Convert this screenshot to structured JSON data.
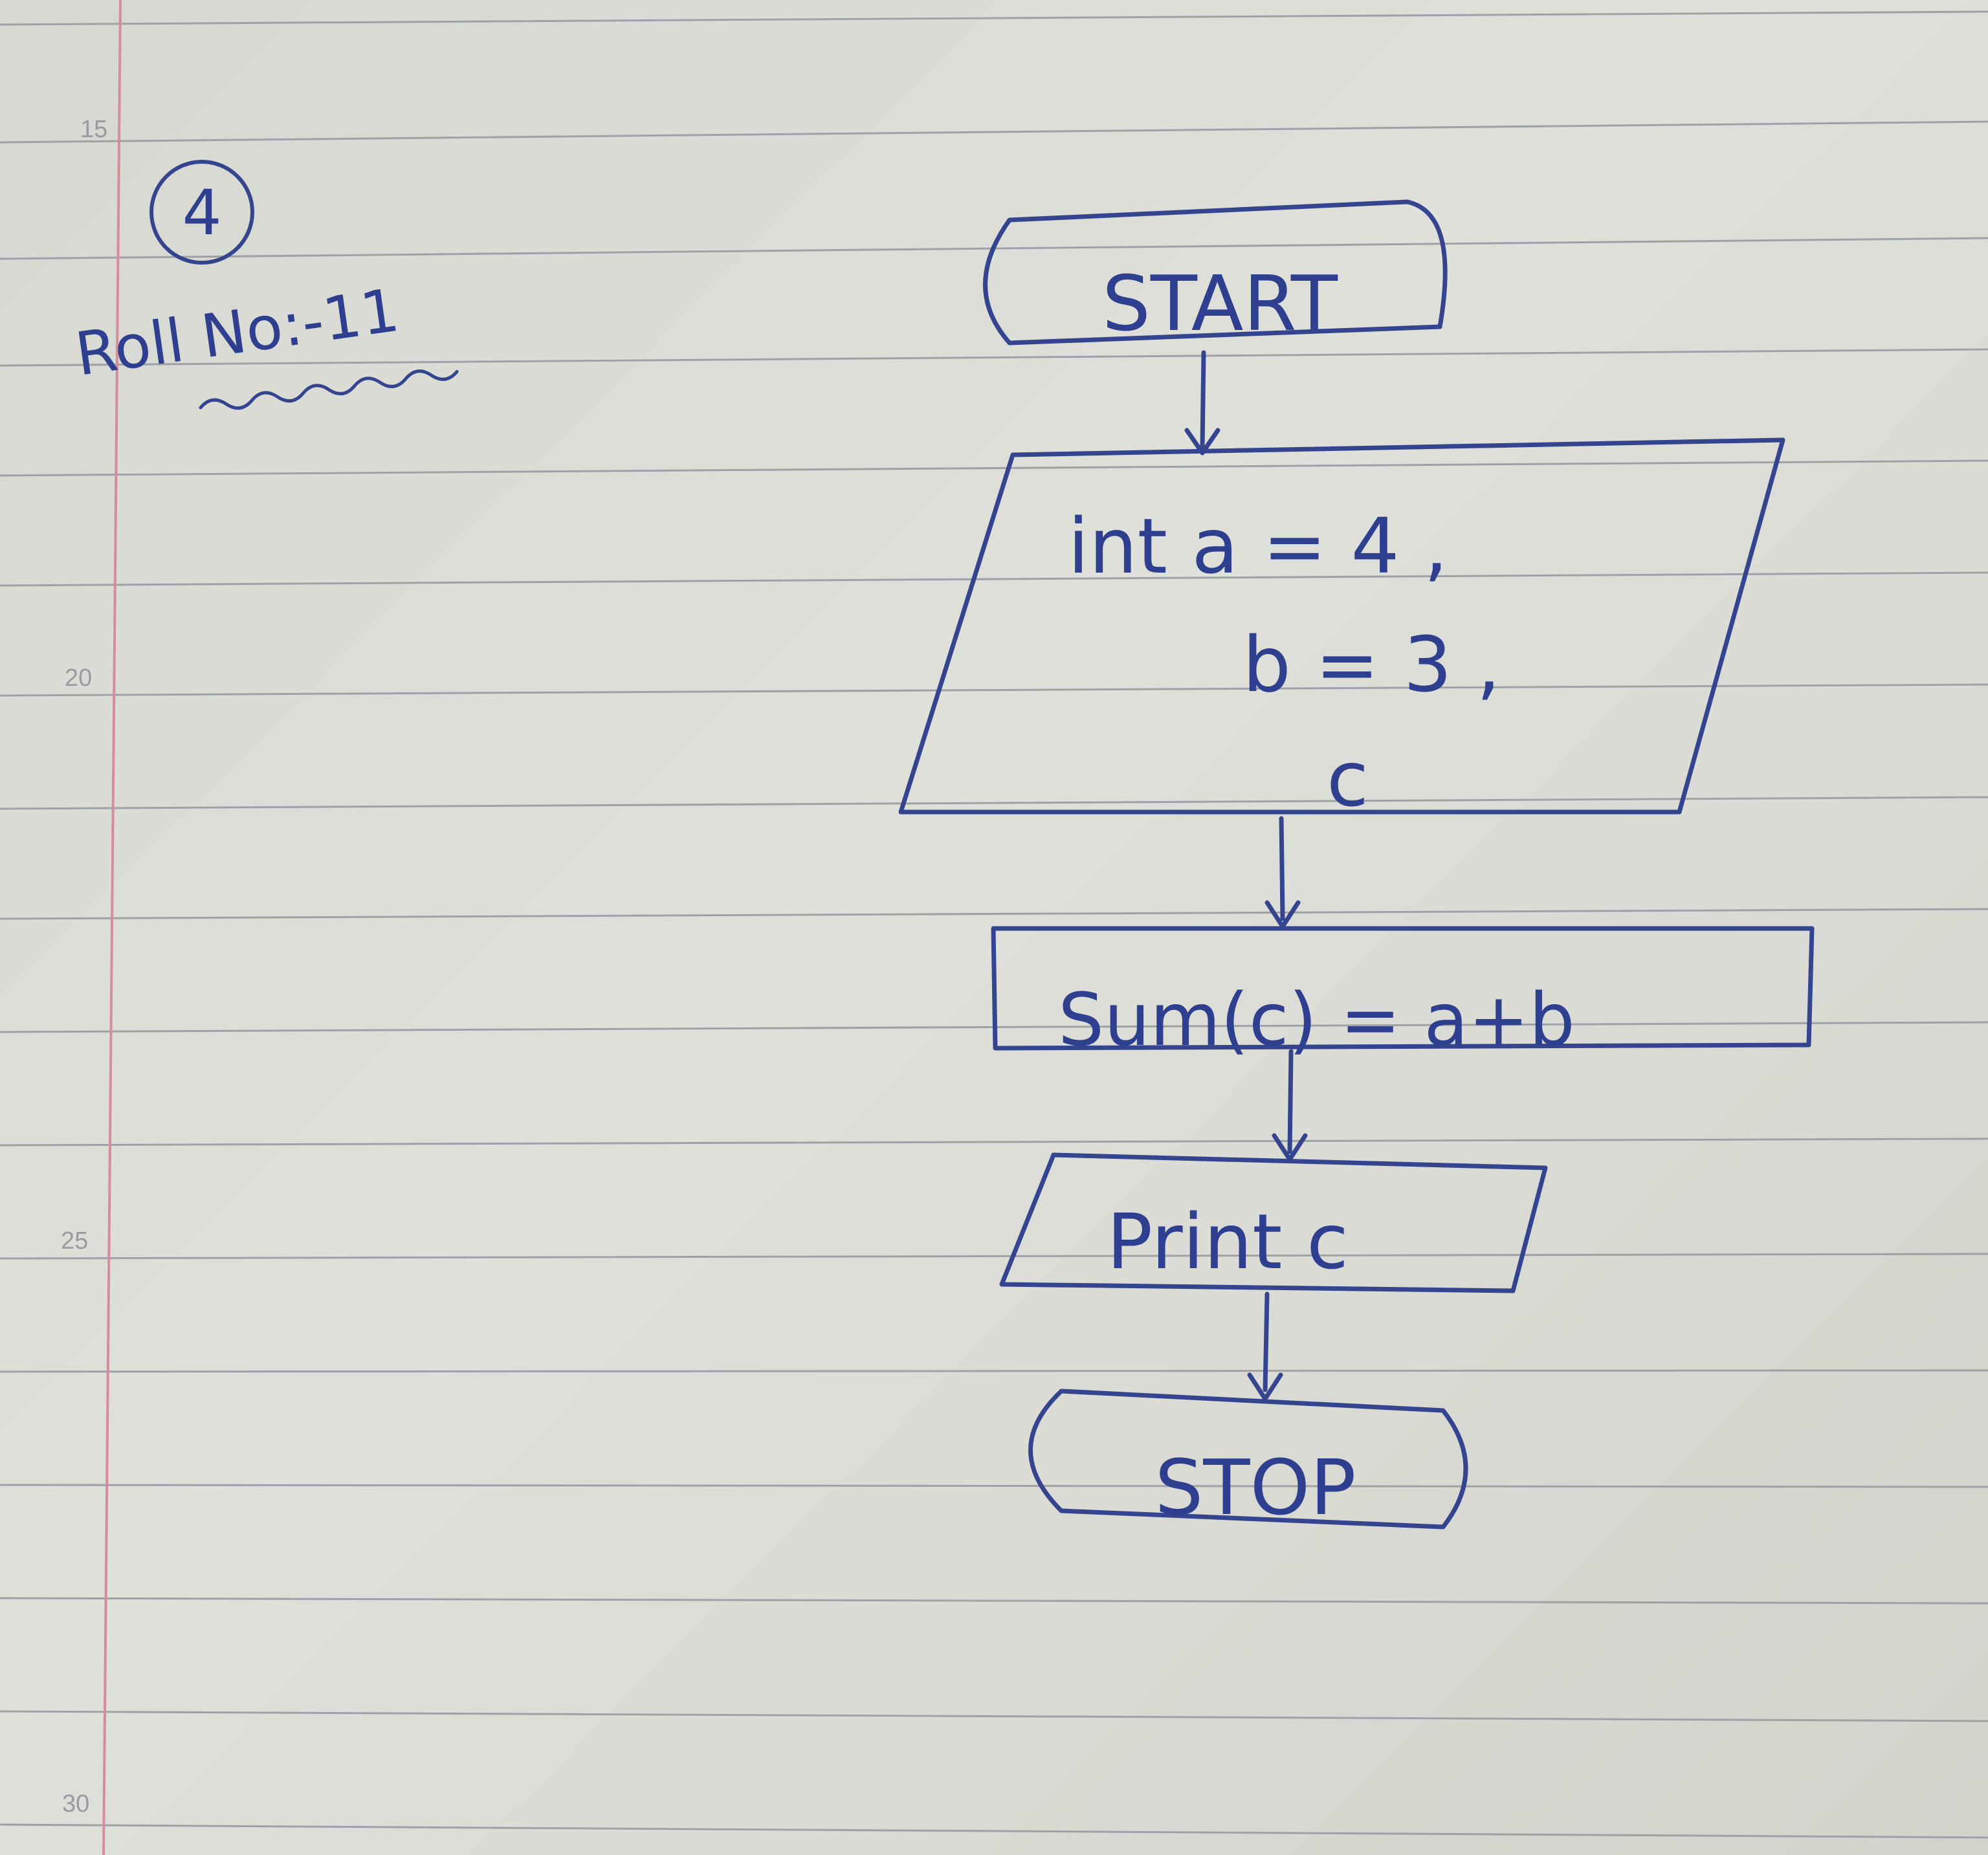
{
  "margin_numbers": [
    "15",
    "20",
    "25",
    "30"
  ],
  "header": {
    "question_number": "4",
    "roll_label": "Roll No:-11"
  },
  "flowchart": {
    "start": "START",
    "input_lines": [
      "int a = 4 ,",
      "b = 3 ,",
      "c"
    ],
    "process": "Sum(c) = a+b",
    "output": "Print c",
    "stop": "STOP"
  },
  "colors": {
    "ink": "#2f3f8f",
    "paper": "#dadbd5",
    "rule_line": "#9ea2a6",
    "margin_line": "#d78c9c"
  }
}
